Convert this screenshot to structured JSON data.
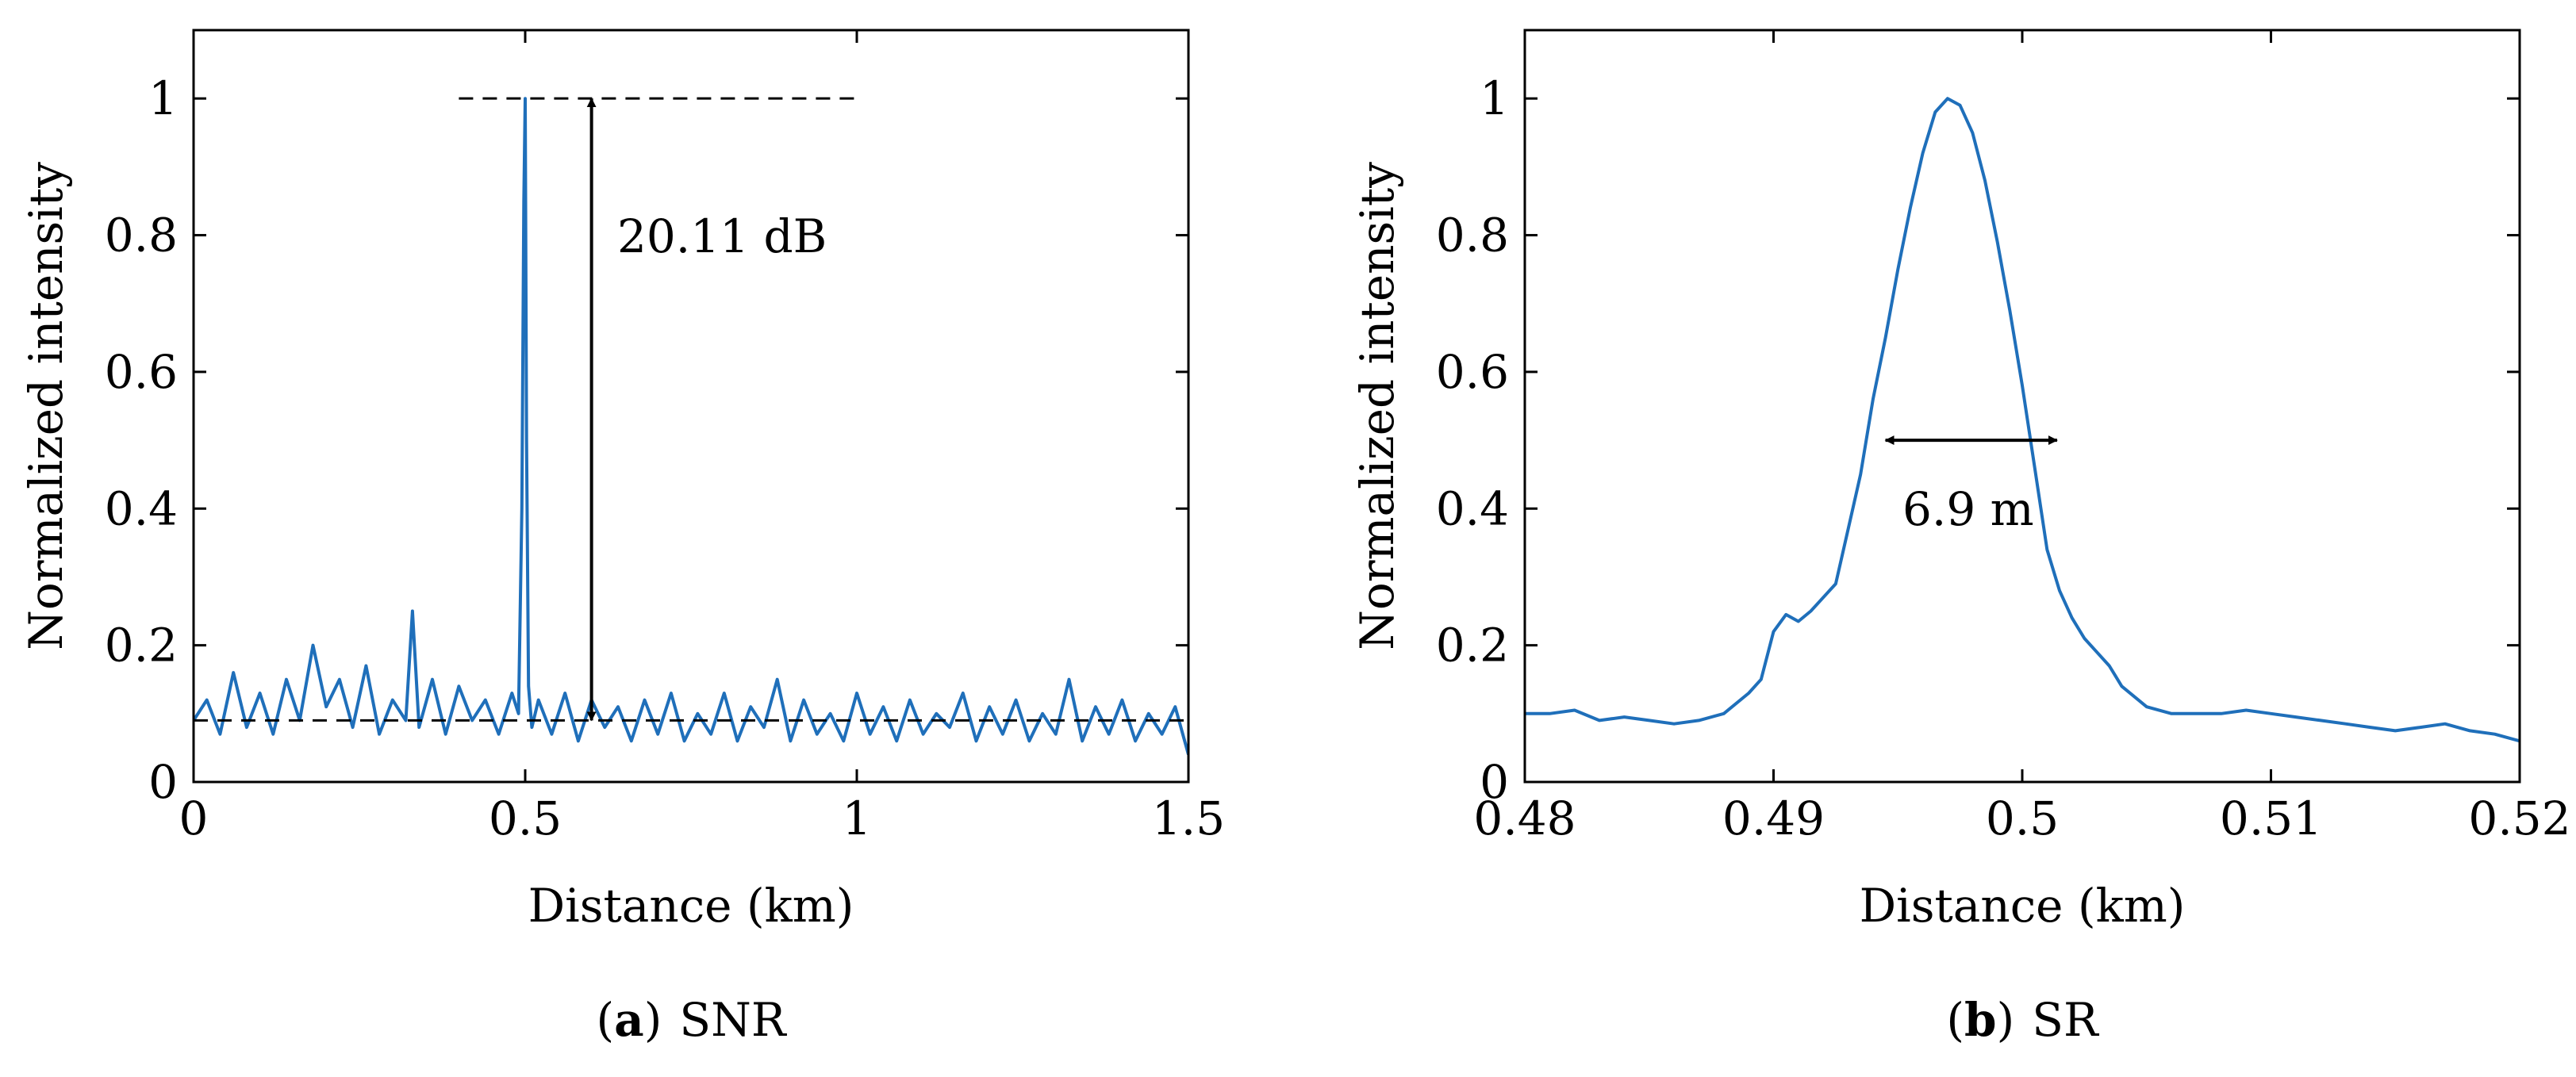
{
  "colors": {
    "series": "#1f6fba",
    "axis": "#000000",
    "annotation": "#000000"
  },
  "chart_data": [
    {
      "type": "line",
      "panel_tag": "a",
      "caption": "SNR",
      "xlabel": "Distance (km)",
      "ylabel": "Normalized intensity",
      "xlim": [
        0,
        1.5
      ],
      "ylim": [
        0,
        1.1
      ],
      "xticks": [
        0,
        0.5,
        1,
        1.5
      ],
      "xtick_labels": [
        "0",
        "0.5",
        "1",
        "1.5"
      ],
      "yticks": [
        0,
        0.2,
        0.4,
        0.6,
        0.8,
        1
      ],
      "ytick_labels": [
        "0",
        "0.2",
        "0.4",
        "0.6",
        "0.8",
        "1"
      ],
      "series": [
        {
          "name": "trace",
          "x": [
            0.0,
            0.02,
            0.04,
            0.06,
            0.08,
            0.1,
            0.12,
            0.14,
            0.16,
            0.18,
            0.2,
            0.22,
            0.24,
            0.26,
            0.28,
            0.3,
            0.32,
            0.33,
            0.34,
            0.36,
            0.38,
            0.4,
            0.42,
            0.44,
            0.46,
            0.48,
            0.49,
            0.495,
            0.498,
            0.5,
            0.502,
            0.505,
            0.51,
            0.52,
            0.54,
            0.56,
            0.58,
            0.6,
            0.62,
            0.64,
            0.66,
            0.68,
            0.7,
            0.72,
            0.74,
            0.76,
            0.78,
            0.8,
            0.82,
            0.84,
            0.86,
            0.88,
            0.9,
            0.92,
            0.94,
            0.96,
            0.98,
            1.0,
            1.02,
            1.04,
            1.06,
            1.08,
            1.1,
            1.12,
            1.14,
            1.16,
            1.18,
            1.2,
            1.22,
            1.24,
            1.26,
            1.28,
            1.3,
            1.32,
            1.34,
            1.36,
            1.38,
            1.4,
            1.42,
            1.44,
            1.46,
            1.48,
            1.5
          ],
          "y": [
            0.09,
            0.12,
            0.07,
            0.16,
            0.08,
            0.13,
            0.07,
            0.15,
            0.09,
            0.2,
            0.11,
            0.15,
            0.08,
            0.17,
            0.07,
            0.12,
            0.09,
            0.25,
            0.08,
            0.15,
            0.07,
            0.14,
            0.09,
            0.12,
            0.07,
            0.13,
            0.1,
            0.4,
            0.85,
            1.0,
            0.5,
            0.14,
            0.08,
            0.12,
            0.07,
            0.13,
            0.06,
            0.12,
            0.08,
            0.11,
            0.06,
            0.12,
            0.07,
            0.13,
            0.06,
            0.1,
            0.07,
            0.13,
            0.06,
            0.11,
            0.08,
            0.15,
            0.06,
            0.12,
            0.07,
            0.1,
            0.06,
            0.13,
            0.07,
            0.11,
            0.06,
            0.12,
            0.07,
            0.1,
            0.08,
            0.13,
            0.06,
            0.11,
            0.07,
            0.12,
            0.06,
            0.1,
            0.07,
            0.15,
            0.06,
            0.11,
            0.07,
            0.12,
            0.06,
            0.1,
            0.07,
            0.11,
            0.04
          ]
        }
      ],
      "reference_lines": [
        {
          "style": "dashed",
          "y": 1.0,
          "x_range": [
            0.4,
            1.0
          ]
        },
        {
          "style": "dashed",
          "y": 0.09,
          "x_range": [
            0,
            1.5
          ]
        }
      ],
      "annotation": {
        "text": "20.11 dB",
        "arrow": "vertical",
        "x": 0.6,
        "y_range": [
          0.09,
          1.0
        ]
      }
    },
    {
      "type": "line",
      "panel_tag": "b",
      "caption": "SR",
      "xlabel": "Distance (km)",
      "ylabel": "Normalized intensity",
      "xlim": [
        0.48,
        0.52
      ],
      "ylim": [
        0,
        1.1
      ],
      "xticks": [
        0.48,
        0.49,
        0.5,
        0.51,
        0.52
      ],
      "xtick_labels": [
        "0.48",
        "0.49",
        "0.5",
        "0.51",
        "0.52"
      ],
      "yticks": [
        0,
        0.2,
        0.4,
        0.6,
        0.8,
        1
      ],
      "ytick_labels": [
        "0",
        "0.2",
        "0.4",
        "0.6",
        "0.8",
        "1"
      ],
      "series": [
        {
          "name": "trace",
          "x": [
            0.48,
            0.481,
            0.482,
            0.483,
            0.484,
            0.485,
            0.486,
            0.487,
            0.488,
            0.489,
            0.4895,
            0.49,
            0.4905,
            0.491,
            0.4915,
            0.492,
            0.4925,
            0.493,
            0.4935,
            0.494,
            0.4945,
            0.495,
            0.4955,
            0.496,
            0.4965,
            0.497,
            0.4975,
            0.498,
            0.4985,
            0.499,
            0.4995,
            0.5,
            0.5005,
            0.501,
            0.5015,
            0.502,
            0.5025,
            0.503,
            0.5035,
            0.504,
            0.505,
            0.506,
            0.507,
            0.508,
            0.509,
            0.51,
            0.511,
            0.512,
            0.513,
            0.514,
            0.515,
            0.516,
            0.517,
            0.518,
            0.519,
            0.52
          ],
          "y": [
            0.1,
            0.1,
            0.105,
            0.09,
            0.095,
            0.09,
            0.085,
            0.09,
            0.1,
            0.13,
            0.15,
            0.22,
            0.245,
            0.235,
            0.25,
            0.27,
            0.29,
            0.37,
            0.45,
            0.56,
            0.65,
            0.75,
            0.84,
            0.92,
            0.98,
            1.0,
            0.99,
            0.95,
            0.88,
            0.79,
            0.69,
            0.58,
            0.46,
            0.34,
            0.28,
            0.24,
            0.21,
            0.19,
            0.17,
            0.14,
            0.11,
            0.1,
            0.1,
            0.1,
            0.105,
            0.1,
            0.095,
            0.09,
            0.085,
            0.08,
            0.075,
            0.08,
            0.085,
            0.075,
            0.07,
            0.06
          ]
        }
      ],
      "annotation": {
        "text": "6.9 m",
        "arrow": "horizontal",
        "y": 0.5,
        "x_range": [
          0.4945,
          0.5014
        ]
      }
    }
  ]
}
